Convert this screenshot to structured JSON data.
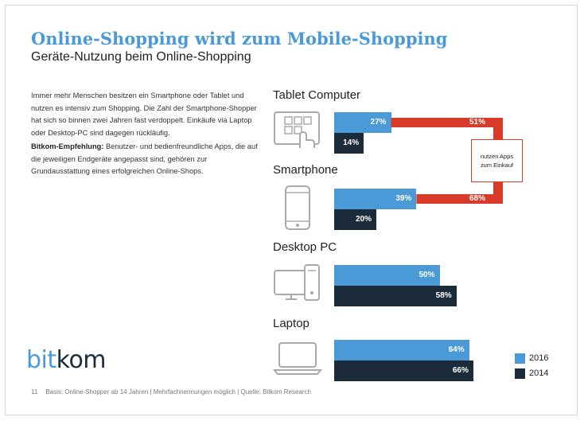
{
  "title": "Online-Shopping wird zum Mobile-Shopping",
  "subtitle": "Geräte-Nutzung beim Online-Shopping",
  "intro": "Immer mehr Menschen besitzen ein Smartphone oder Tablet und nutzen es intensiv zum Shopping. Die Zahl der Smartphone-Shopper hat sich so binnen zwei Jahren fast verdoppelt. Einkäufe via Laptop oder Desktop-PC sind dagegen rückläufig.",
  "recommendation": {
    "label": "Bitkom-Empfehlung:",
    "text": " Benutzer- und bedienfreundliche Apps, die auf die jeweiligen Endgeräte angepasst sind, gehören zur Grundausstattung eines erfolgreichen Online-Shops."
  },
  "logo": {
    "part1": "bit",
    "part2": "kom"
  },
  "footer": {
    "page": "11",
    "note": "Basis: Online-Shopper ab 14 Jahren | Mehrfachnennungen möglich | Quelle: Bitkom Research"
  },
  "app_box": {
    "line1": "nutzen Apps",
    "line2": "zum Einkauf"
  },
  "colors": {
    "s2016": "#4a9ad8",
    "s2014": "#1b2b3a",
    "apps": "#d93b2b",
    "title": "#4a9ad8"
  },
  "icons": [
    "tablet-icon",
    "smartphone-icon",
    "desktop-pc-icon",
    "laptop-icon"
  ],
  "chart_data": {
    "type": "bar",
    "orientation": "horizontal",
    "categories": [
      "Tablet Computer",
      "Smartphone",
      "Desktop PC",
      "Laptop"
    ],
    "series": [
      {
        "name": "2016",
        "values": [
          27,
          39,
          50,
          64
        ]
      },
      {
        "name": "2014",
        "values": [
          14,
          20,
          58,
          66
        ]
      }
    ],
    "apps_usage": {
      "categories": [
        "Tablet Computer",
        "Smartphone"
      ],
      "values": [
        51,
        68
      ]
    },
    "value_suffix": "%",
    "legend": {
      "position": "bottom-right",
      "entries": [
        "2016",
        "2014"
      ]
    },
    "grid": false
  }
}
